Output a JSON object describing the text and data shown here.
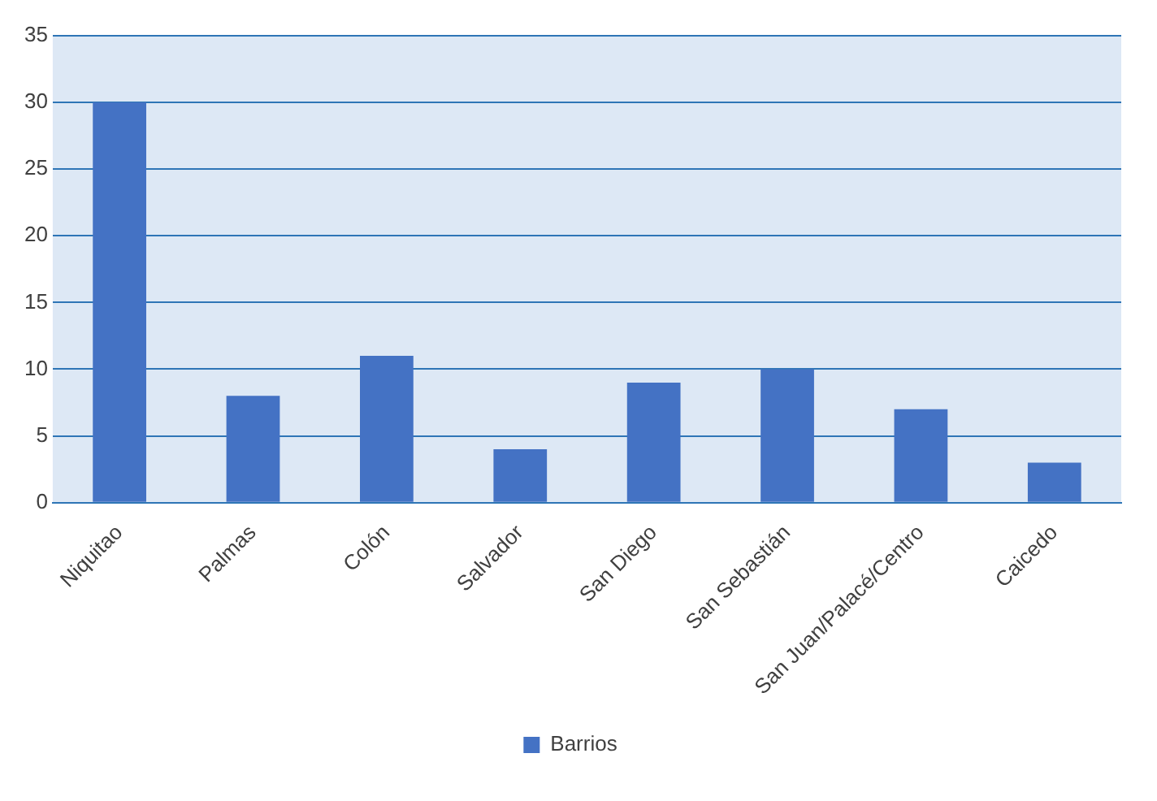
{
  "chart_data": {
    "type": "bar",
    "categories": [
      "Niquitao",
      "Palmas",
      "Colón",
      "Salvador",
      "San Diego",
      "San Sebastián",
      "San Juan/Palacé/Centro",
      "Caicedo"
    ],
    "series": [
      {
        "name": "Barrios",
        "color": "#4472c4",
        "values": [
          30,
          8,
          11,
          4,
          9,
          10,
          7,
          3
        ]
      }
    ],
    "ylim": [
      0,
      35
    ],
    "yticks": [
      0,
      5,
      10,
      15,
      20,
      25,
      30,
      35
    ],
    "grid": "y",
    "legend": "bottom"
  }
}
